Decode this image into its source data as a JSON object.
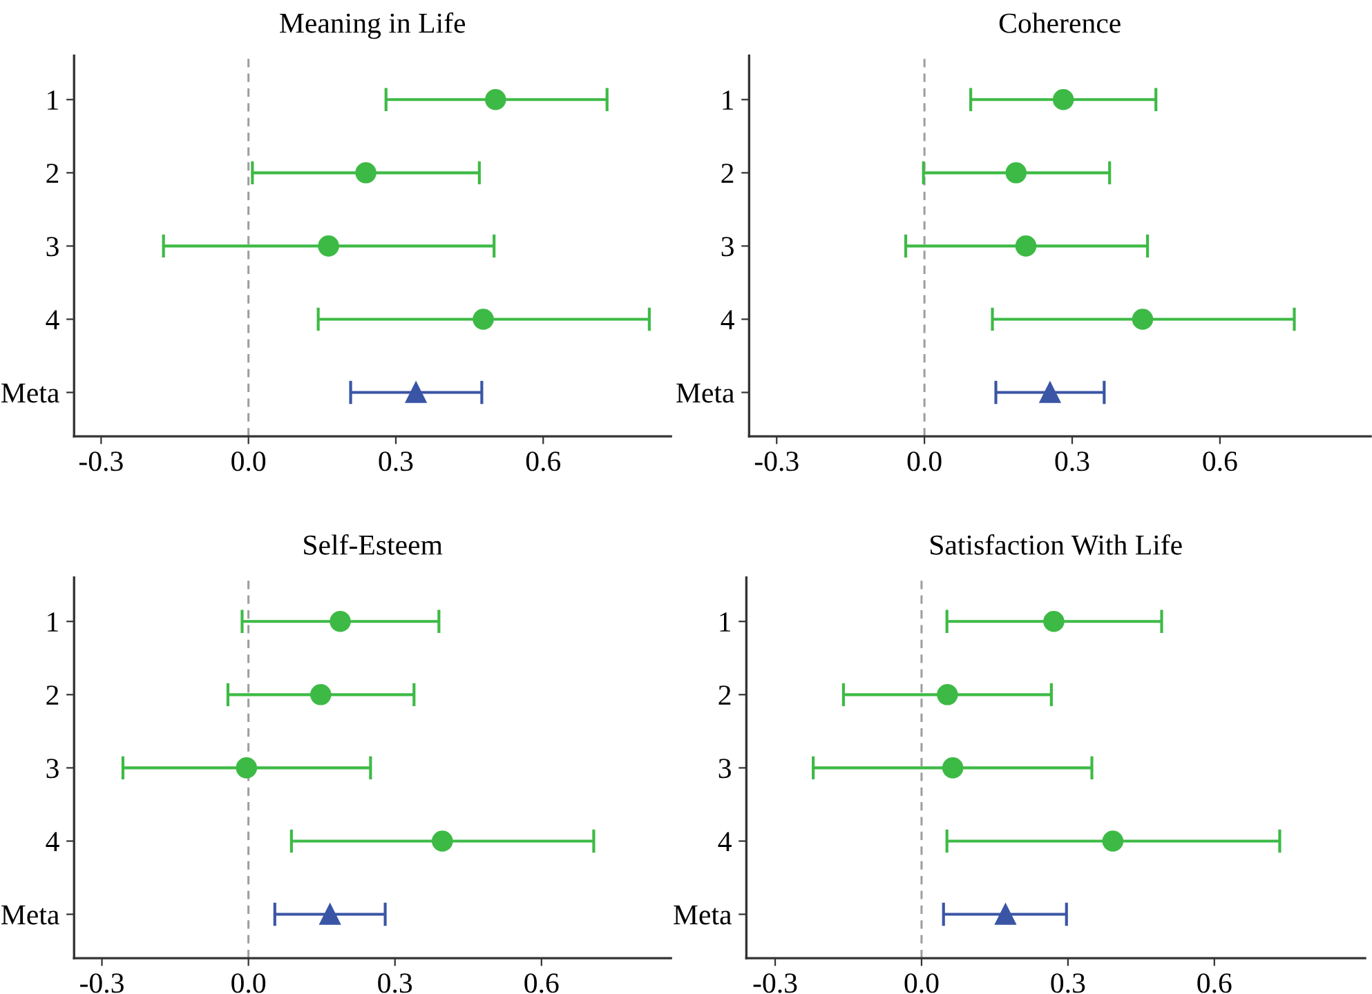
{
  "chart_data": [
    {
      "type": "scatter",
      "orientation": "horizontal",
      "title": "Meaning in Life",
      "categories": [
        "1",
        "2",
        "3",
        "4",
        "Meta"
      ],
      "xlim": [
        -0.355,
        0.86
      ],
      "xticks": [
        {
          "value": -0.3,
          "label": "-0.3"
        },
        {
          "value": 0,
          "label": "0.0"
        },
        {
          "value": 0.3,
          "label": "0.3"
        },
        {
          "value": 0.6,
          "label": "0.6"
        }
      ],
      "ref_lines": [
        {
          "axis": "x",
          "value": 0,
          "color": "#9e9e9e",
          "line_style": "dashed"
        }
      ],
      "grid": false,
      "series": [
        {
          "color": "#3dba45",
          "marker": "circle",
          "values": [
            0.503,
            0.239,
            0.163,
            0.478,
            null
          ],
          "errors": [
            [
              0.28,
              0.73
            ],
            [
              0.008,
              0.47
            ],
            [
              -0.173,
              0.5
            ],
            [
              0.142,
              0.816
            ],
            null
          ]
        },
        {
          "color": "#3a55a5",
          "marker": "triangle",
          "values": [
            null,
            null,
            null,
            null,
            0.341
          ],
          "errors": [
            null,
            null,
            null,
            null,
            [
              0.208,
              0.475
            ]
          ]
        }
      ]
    },
    {
      "type": "scatter",
      "orientation": "horizontal",
      "title": "Coherence",
      "categories": [
        "1",
        "2",
        "3",
        "4",
        "Meta"
      ],
      "xlim": [
        -0.356,
        0.906
      ],
      "xticks": [
        {
          "value": -0.3,
          "label": "-0.3"
        },
        {
          "value": 0,
          "label": "0.0"
        },
        {
          "value": 0.3,
          "label": "0.3"
        },
        {
          "value": 0.6,
          "label": "0.6"
        }
      ],
      "ref_lines": [
        {
          "axis": "x",
          "value": 0,
          "color": "#9e9e9e",
          "line_style": "dashed"
        }
      ],
      "grid": false,
      "series": [
        {
          "color": "#3dba45",
          "marker": "circle",
          "values": [
            0.282,
            0.186,
            0.206,
            0.443,
            null
          ],
          "errors": [
            [
              0.094,
              0.47
            ],
            [
              -0.002,
              0.376
            ],
            [
              -0.038,
              0.453
            ],
            [
              0.138,
              0.751
            ],
            null
          ]
        },
        {
          "color": "#3a55a5",
          "marker": "triangle",
          "values": [
            null,
            null,
            null,
            null,
            0.255
          ],
          "errors": [
            null,
            null,
            null,
            null,
            [
              0.145,
              0.365
            ]
          ]
        }
      ]
    },
    {
      "type": "scatter",
      "orientation": "horizontal",
      "title": "Self-Esteem",
      "categories": [
        "1",
        "2",
        "3",
        "4",
        "Meta"
      ],
      "xlim": [
        -0.357,
        0.865
      ],
      "xticks": [
        {
          "value": -0.3,
          "label": "-0.3"
        },
        {
          "value": 0,
          "label": "0.0"
        },
        {
          "value": 0.3,
          "label": "0.3"
        },
        {
          "value": 0.6,
          "label": "0.6"
        }
      ],
      "ref_lines": [
        {
          "axis": "x",
          "value": 0,
          "color": "#9e9e9e",
          "line_style": "dashed"
        }
      ],
      "grid": false,
      "series": [
        {
          "color": "#3dba45",
          "marker": "circle",
          "values": [
            0.188,
            0.148,
            -0.004,
            0.397,
            null
          ],
          "errors": [
            [
              -0.013,
              0.39
            ],
            [
              -0.042,
              0.339
            ],
            [
              -0.257,
              0.25
            ],
            [
              0.088,
              0.707
            ],
            null
          ]
        },
        {
          "color": "#3a55a5",
          "marker": "triangle",
          "values": [
            null,
            null,
            null,
            null,
            0.167
          ],
          "errors": [
            null,
            null,
            null,
            null,
            [
              0.054,
              0.28
            ]
          ]
        }
      ]
    },
    {
      "type": "scatter",
      "orientation": "horizontal",
      "title": "Satisfaction With Life",
      "categories": [
        "1",
        "2",
        "3",
        "4",
        "Meta"
      ],
      "xlim": [
        -0.359,
        0.909
      ],
      "xticks": [
        {
          "value": -0.3,
          "label": "-0.3"
        },
        {
          "value": 0,
          "label": "0.0"
        },
        {
          "value": 0.3,
          "label": "0.3"
        },
        {
          "value": 0.6,
          "label": "0.6"
        }
      ],
      "ref_lines": [
        {
          "axis": "x",
          "value": 0,
          "color": "#9e9e9e",
          "line_style": "dashed"
        }
      ],
      "grid": false,
      "series": [
        {
          "color": "#3dba45",
          "marker": "circle",
          "values": [
            0.271,
            0.053,
            0.064,
            0.392,
            null
          ],
          "errors": [
            [
              0.052,
              0.492
            ],
            [
              -0.16,
              0.266
            ],
            [
              -0.222,
              0.349
            ],
            [
              0.052,
              0.734
            ],
            null
          ]
        },
        {
          "color": "#3a55a5",
          "marker": "triangle",
          "values": [
            null,
            null,
            null,
            null,
            0.172
          ],
          "errors": [
            null,
            null,
            null,
            null,
            [
              0.045,
              0.297
            ]
          ]
        }
      ]
    }
  ]
}
